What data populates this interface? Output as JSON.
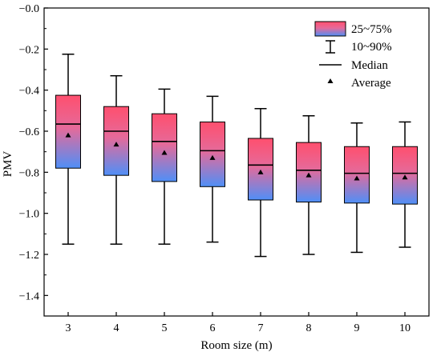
{
  "chart_data": {
    "type": "box",
    "xlabel": "Room size (m)",
    "ylabel": "PMV",
    "ylim": [
      -1.5,
      0.0
    ],
    "yticks": [
      0.0,
      -0.2,
      -0.4,
      -0.6,
      -0.8,
      -1.0,
      -1.2,
      -1.4
    ],
    "ytick_labels": [
      "−0.0",
      "−0.2",
      "−0.4",
      "−0.6",
      "−0.8",
      "−1.0",
      "−1.2",
      "−1.4"
    ],
    "categories": [
      "3",
      "4",
      "5",
      "6",
      "7",
      "8",
      "9",
      "10"
    ],
    "boxes": [
      {
        "category": "3",
        "p10": -1.15,
        "q1": -0.78,
        "median": -0.565,
        "q3": -0.425,
        "p90": -0.225,
        "mean": -0.62
      },
      {
        "category": "4",
        "p10": -1.15,
        "q1": -0.815,
        "median": -0.6,
        "q3": -0.48,
        "p90": -0.33,
        "mean": -0.665
      },
      {
        "category": "5",
        "p10": -1.15,
        "q1": -0.845,
        "median": -0.65,
        "q3": -0.515,
        "p90": -0.395,
        "mean": -0.705
      },
      {
        "category": "6",
        "p10": -1.14,
        "q1": -0.87,
        "median": -0.695,
        "q3": -0.555,
        "p90": -0.43,
        "mean": -0.73
      },
      {
        "category": "7",
        "p10": -1.21,
        "q1": -0.935,
        "median": -0.765,
        "q3": -0.635,
        "p90": -0.49,
        "mean": -0.8
      },
      {
        "category": "8",
        "p10": -1.2,
        "q1": -0.945,
        "median": -0.79,
        "q3": -0.655,
        "p90": -0.525,
        "mean": -0.815
      },
      {
        "category": "9",
        "p10": -1.19,
        "q1": -0.95,
        "median": -0.805,
        "q3": -0.675,
        "p90": -0.56,
        "mean": -0.83
      },
      {
        "category": "10",
        "p10": -1.165,
        "q1": -0.955,
        "median": -0.805,
        "q3": -0.675,
        "p90": -0.555,
        "mean": -0.825
      }
    ],
    "legend": {
      "placement": "top-right",
      "items": [
        {
          "key": "box",
          "label": "25~75%"
        },
        {
          "key": "whisker",
          "label": "10~90%"
        },
        {
          "key": "median",
          "label": "Median"
        },
        {
          "key": "mean",
          "label": "Average"
        }
      ]
    },
    "colors": {
      "box_top": "#ff4f6e",
      "box_bottom": "#4f8ff7",
      "line": "#000000"
    }
  }
}
